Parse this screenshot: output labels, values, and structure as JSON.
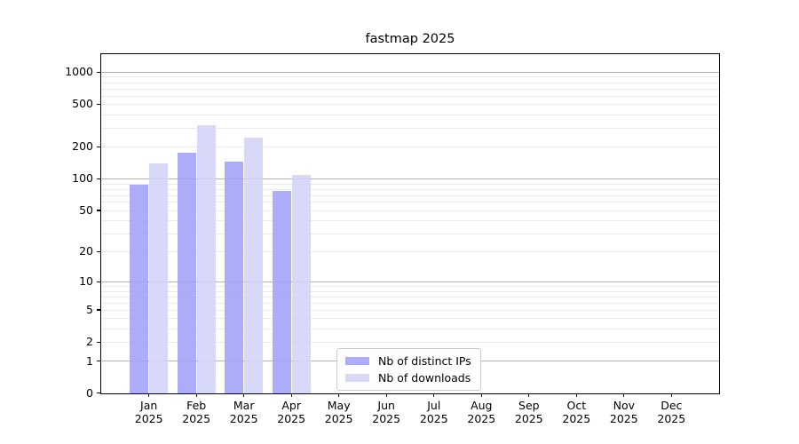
{
  "title": "fastmap 2025",
  "chart_data": {
    "type": "bar",
    "title": "fastmap 2025",
    "xlabel": "",
    "ylabel": "",
    "categories": [
      "Jan 2025",
      "Feb 2025",
      "Mar 2025",
      "Apr 2025",
      "May 2025",
      "Jun 2025",
      "Jul 2025",
      "Aug 2025",
      "Sep 2025",
      "Oct 2025",
      "Nov 2025",
      "Dec 2025"
    ],
    "series": [
      {
        "name": "Nb of distinct IPs",
        "color": "#a0a0f7",
        "values": [
          88,
          175,
          145,
          76,
          0,
          0,
          0,
          0,
          0,
          0,
          0,
          0
        ]
      },
      {
        "name": "Nb of downloads",
        "color": "#d3d3f7",
        "values": [
          139,
          320,
          243,
          108,
          0,
          0,
          0,
          0,
          0,
          0,
          0,
          0
        ]
      }
    ],
    "yscale": "log1p",
    "ylim": [
      0,
      1464
    ],
    "yticks": [
      0,
      1,
      2,
      5,
      10,
      20,
      50,
      100,
      200,
      500,
      1000
    ],
    "grid_major": [
      1,
      10,
      100,
      1000
    ],
    "grid_minor": [
      2,
      3,
      4,
      5,
      6,
      7,
      8,
      9,
      20,
      30,
      40,
      50,
      60,
      70,
      80,
      90,
      200,
      300,
      400,
      500,
      600,
      700,
      800,
      900
    ],
    "grid": "on",
    "legend_position": "lower center"
  },
  "colors": {
    "background": "#ffffff",
    "spine": "#000000",
    "grid_major": "#b2b2b2",
    "grid_minor": "#eaeaea",
    "bar_distinct_ips": "#a0a0f7",
    "bar_downloads": "#d3d3f7"
  }
}
